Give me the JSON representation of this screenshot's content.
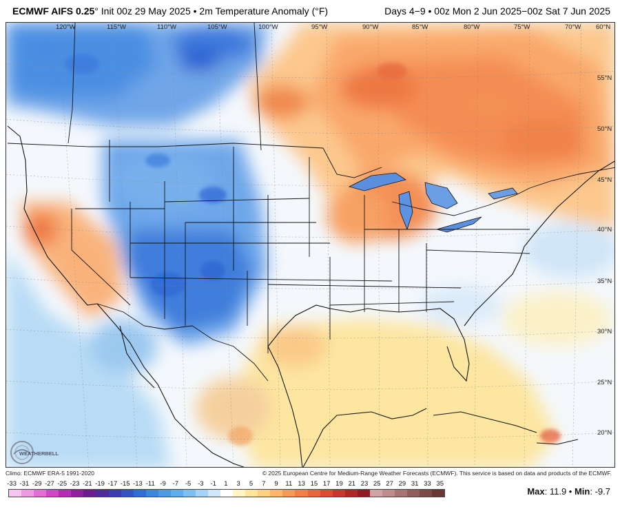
{
  "header": {
    "title_bold": "ECMWF AIFS 0.25",
    "title_rest": "° Init 00z 29 May 2025 • 2m Temperature Anomaly (°F)",
    "range": "Days 4−9 • 00z Mon 2 Jun 2025−00z Sat 7 Jun 2025"
  },
  "map": {
    "lon_labels": [
      "120°W",
      "115°W",
      "110°W",
      "105°W",
      "100°W",
      "95°W",
      "90°W",
      "85°W",
      "80°W",
      "75°W",
      "70°W",
      "60°N"
    ],
    "lat_labels": [
      "55°N",
      "50°N",
      "45°N",
      "40°N",
      "35°N",
      "30°N",
      "25°N",
      "20°N"
    ],
    "logo_text": "WEATHERBELL"
  },
  "footer": {
    "climo": "Climo: ECMWF ERA-5 1991-2020",
    "copyright": "© 2025 European Centre for Medium-Range Weather Forecasts (ECMWF). This service is based on data and products of the ECMWF."
  },
  "scale": {
    "labels": [
      "-33",
      "-31",
      "-29",
      "-27",
      "-25",
      "-23",
      "-21",
      "-19",
      "-17",
      "-15",
      "-13",
      "-11",
      "-9",
      "-7",
      "-5",
      "-3",
      "-1",
      "1",
      "3",
      "5",
      "7",
      "9",
      "11",
      "13",
      "15",
      "17",
      "19",
      "21",
      "23",
      "25",
      "27",
      "29",
      "31",
      "33",
      "35"
    ],
    "colors": [
      "#f7c6f0",
      "#ee9ae3",
      "#e36fd6",
      "#cf48c6",
      "#b52db3",
      "#8e1f9e",
      "#6b1d8d",
      "#4f2a9a",
      "#3f3bb0",
      "#3554c5",
      "#2f6ed6",
      "#3a87e0",
      "#4a9ae6",
      "#5eaded",
      "#7cc0f2",
      "#a3d3f6",
      "#cfe6fa",
      "#ffffff",
      "#fff6c4",
      "#ffe49a",
      "#fdcf7e",
      "#fbb66a",
      "#f89a57",
      "#f27f48",
      "#e9653d",
      "#dc4c34",
      "#c9362d",
      "#b02627",
      "#8f1c22",
      "#cfa4a4",
      "#bd8c8c",
      "#a87474",
      "#925d5d",
      "#7c4848",
      "#6a3636"
    ]
  },
  "maxmin": {
    "max_label": "Max",
    "max_value": "11.9",
    "min_label": "Min",
    "min_value": "-9.7"
  }
}
